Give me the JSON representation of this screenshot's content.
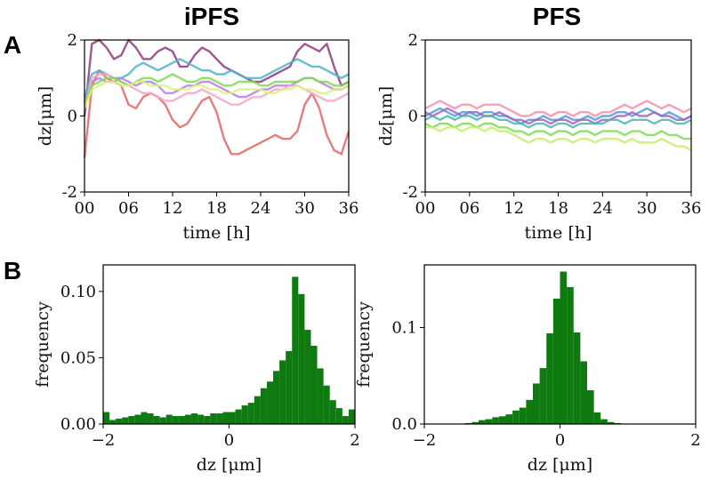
{
  "figure": {
    "panel_a_letter": "A",
    "panel_b_letter": "B",
    "column_titles": [
      "iPFS",
      "PFS"
    ]
  },
  "chart_data": [
    {
      "id": "A-iPFS",
      "type": "line",
      "title": "iPFS",
      "xlabel": "time [h]",
      "ylabel": "dz[μm]",
      "xlim": [
        0,
        36
      ],
      "ylim": [
        -2,
        2
      ],
      "xticks": [
        "00",
        "06",
        "12",
        "18",
        "24",
        "30",
        "36"
      ],
      "yticks": [
        "-2",
        "0",
        "2"
      ],
      "x": [
        0,
        1,
        2,
        3,
        4,
        5,
        6,
        7,
        8,
        9,
        10,
        11,
        12,
        13,
        14,
        15,
        16,
        17,
        18,
        19,
        20,
        21,
        22,
        23,
        24,
        25,
        26,
        27,
        28,
        29,
        30,
        31,
        32,
        33,
        34,
        35,
        36
      ],
      "series": [
        {
          "name": "red",
          "color": "#e06666",
          "values": [
            -1.1,
            0.8,
            1.2,
            1.0,
            0.9,
            0.8,
            0.3,
            0.2,
            0.5,
            0.6,
            0.5,
            0.3,
            -0.1,
            -0.3,
            -0.2,
            0.1,
            0.4,
            0.5,
            0.1,
            -0.6,
            -1.0,
            -1.0,
            -0.9,
            -0.8,
            -0.7,
            -0.6,
            -0.5,
            -0.6,
            -0.6,
            -0.4,
            0.3,
            0.6,
            0.2,
            -0.5,
            -0.9,
            -1.0,
            -0.4
          ]
        },
        {
          "name": "purple",
          "color": "#8e3a7e",
          "values": [
            0.0,
            1.9,
            2.0,
            1.8,
            1.5,
            1.6,
            2.0,
            1.8,
            1.5,
            1.5,
            1.7,
            1.8,
            1.7,
            1.3,
            1.3,
            1.6,
            1.8,
            1.7,
            1.5,
            1.3,
            1.2,
            1.1,
            1.0,
            0.9,
            0.9,
            1.0,
            1.1,
            1.2,
            1.3,
            1.7,
            1.9,
            1.8,
            1.7,
            1.9,
            1.3,
            0.8,
            0.9
          ]
        },
        {
          "name": "cyan",
          "color": "#4fb3c8",
          "values": [
            0.5,
            1.1,
            1.2,
            1.1,
            1.0,
            1.0,
            1.1,
            1.3,
            1.4,
            1.3,
            1.2,
            1.3,
            1.4,
            1.5,
            1.4,
            1.3,
            1.2,
            1.2,
            1.1,
            1.1,
            1.2,
            1.1,
            1.0,
            1.0,
            1.0,
            1.1,
            1.2,
            1.3,
            1.4,
            1.5,
            1.4,
            1.3,
            1.3,
            1.2,
            1.1,
            1.0,
            1.1
          ]
        },
        {
          "name": "violet",
          "color": "#b87fe0",
          "values": [
            0.4,
            0.9,
            1.0,
            0.9,
            0.9,
            1.0,
            0.9,
            0.8,
            0.9,
            0.9,
            0.8,
            0.6,
            0.6,
            0.7,
            0.8,
            0.8,
            0.9,
            0.9,
            0.8,
            0.7,
            0.6,
            0.5,
            0.5,
            0.6,
            0.7,
            0.7,
            0.8,
            0.8,
            0.8,
            0.9,
            1.0,
            1.0,
            0.9,
            0.8,
            0.7,
            0.7,
            0.8
          ]
        },
        {
          "name": "pink",
          "color": "#f4a6c9",
          "values": [
            0.2,
            1.0,
            1.1,
            1.1,
            1.0,
            0.9,
            0.8,
            0.7,
            0.6,
            0.6,
            0.5,
            0.4,
            0.4,
            0.5,
            0.6,
            0.6,
            0.7,
            0.6,
            0.5,
            0.4,
            0.3,
            0.3,
            0.4,
            0.5,
            0.5,
            0.6,
            0.7,
            0.7,
            0.8,
            0.8,
            0.7,
            0.6,
            0.5,
            0.4,
            0.4,
            0.5,
            0.6
          ]
        },
        {
          "name": "green",
          "color": "#7ed957",
          "values": [
            0.3,
            0.8,
            0.9,
            1.0,
            1.0,
            0.9,
            0.8,
            0.9,
            1.0,
            1.0,
            0.9,
            1.0,
            1.1,
            1.0,
            0.9,
            0.9,
            1.0,
            1.0,
            0.9,
            0.8,
            0.8,
            0.9,
            0.9,
            0.9,
            0.8,
            0.8,
            0.9,
            0.9,
            0.9,
            0.9,
            1.0,
            1.0,
            0.9,
            0.9,
            0.8,
            0.8,
            0.9
          ]
        },
        {
          "name": "lime",
          "color": "#d8f27a",
          "values": [
            0.2,
            0.7,
            0.8,
            0.9,
            0.9,
            0.8,
            0.8,
            0.9,
            0.9,
            0.8,
            0.8,
            0.8,
            0.7,
            0.7,
            0.7,
            0.8,
            0.8,
            0.7,
            0.7,
            0.6,
            0.6,
            0.7,
            0.7,
            0.7,
            0.7,
            0.6,
            0.6,
            0.7,
            0.7,
            0.8,
            0.7,
            0.7,
            0.6,
            0.6,
            0.7,
            0.7,
            0.8
          ]
        }
      ]
    },
    {
      "id": "A-PFS",
      "type": "line",
      "title": "PFS",
      "xlabel": "time [h]",
      "ylabel": "dz[μm]",
      "xlim": [
        0,
        36
      ],
      "ylim": [
        -2,
        2
      ],
      "xticks": [
        "00",
        "06",
        "12",
        "18",
        "24",
        "30",
        "36"
      ],
      "yticks": [
        "-2",
        "0",
        "2"
      ],
      "x": [
        0,
        1,
        2,
        3,
        4,
        5,
        6,
        7,
        8,
        9,
        10,
        11,
        12,
        13,
        14,
        15,
        16,
        17,
        18,
        19,
        20,
        21,
        22,
        23,
        24,
        25,
        26,
        27,
        28,
        29,
        30,
        31,
        32,
        33,
        34,
        35,
        36
      ],
      "series": [
        {
          "name": "pink",
          "color": "#f48fb1",
          "values": [
            0.2,
            0.3,
            0.4,
            0.3,
            0.2,
            0.3,
            0.3,
            0.2,
            0.3,
            0.3,
            0.3,
            0.2,
            0.1,
            0.0,
            0.0,
            0.1,
            0.1,
            0.0,
            0.1,
            0.1,
            0.0,
            0.1,
            0.1,
            0.0,
            0.1,
            0.1,
            0.2,
            0.3,
            0.2,
            0.3,
            0.4,
            0.3,
            0.2,
            0.3,
            0.2,
            0.1,
            0.2
          ]
        },
        {
          "name": "blue",
          "color": "#4f9bd9",
          "values": [
            0.0,
            0.1,
            0.2,
            0.1,
            0.0,
            0.1,
            0.1,
            0.0,
            0.1,
            0.1,
            0.0,
            0.0,
            -0.1,
            -0.2,
            -0.1,
            -0.1,
            0.0,
            -0.1,
            -0.1,
            0.0,
            -0.1,
            -0.1,
            0.0,
            -0.1,
            0.0,
            0.0,
            0.1,
            0.1,
            0.0,
            0.1,
            0.2,
            0.1,
            0.0,
            0.1,
            0.0,
            -0.1,
            0.0
          ]
        },
        {
          "name": "purple",
          "color": "#a064c8",
          "values": [
            0.1,
            0.0,
            0.1,
            0.2,
            0.1,
            0.0,
            0.1,
            0.1,
            0.0,
            0.0,
            0.1,
            0.0,
            -0.1,
            -0.1,
            -0.2,
            -0.1,
            -0.1,
            -0.2,
            -0.1,
            -0.1,
            -0.2,
            -0.1,
            -0.1,
            -0.2,
            -0.1,
            -0.1,
            0.0,
            0.0,
            0.1,
            0.0,
            0.0,
            0.1,
            0.0,
            0.0,
            -0.1,
            -0.1,
            0.0
          ]
        },
        {
          "name": "teal",
          "color": "#4db6ac",
          "values": [
            -0.1,
            0.0,
            -0.1,
            0.0,
            -0.1,
            0.0,
            0.0,
            -0.1,
            0.0,
            0.0,
            -0.1,
            -0.1,
            -0.2,
            -0.2,
            -0.3,
            -0.2,
            -0.2,
            -0.3,
            -0.2,
            -0.2,
            -0.3,
            -0.2,
            -0.2,
            -0.2,
            -0.2,
            -0.1,
            -0.1,
            -0.2,
            -0.1,
            -0.1,
            -0.1,
            -0.2,
            -0.1,
            -0.1,
            -0.2,
            -0.2,
            -0.1
          ]
        },
        {
          "name": "green",
          "color": "#7ed957",
          "values": [
            -0.2,
            -0.3,
            -0.2,
            -0.2,
            -0.3,
            -0.2,
            -0.2,
            -0.3,
            -0.2,
            -0.2,
            -0.3,
            -0.3,
            -0.4,
            -0.4,
            -0.5,
            -0.4,
            -0.4,
            -0.5,
            -0.4,
            -0.4,
            -0.5,
            -0.4,
            -0.4,
            -0.5,
            -0.4,
            -0.4,
            -0.4,
            -0.5,
            -0.4,
            -0.4,
            -0.5,
            -0.5,
            -0.4,
            -0.5,
            -0.5,
            -0.6,
            -0.6
          ]
        },
        {
          "name": "lime",
          "color": "#c5ee6a",
          "values": [
            -0.3,
            -0.3,
            -0.4,
            -0.3,
            -0.3,
            -0.4,
            -0.3,
            -0.3,
            -0.4,
            -0.3,
            -0.4,
            -0.4,
            -0.5,
            -0.6,
            -0.7,
            -0.6,
            -0.6,
            -0.7,
            -0.6,
            -0.6,
            -0.7,
            -0.6,
            -0.6,
            -0.7,
            -0.6,
            -0.6,
            -0.6,
            -0.7,
            -0.6,
            -0.7,
            -0.7,
            -0.7,
            -0.6,
            -0.7,
            -0.8,
            -0.8,
            -0.9
          ]
        }
      ]
    },
    {
      "id": "B-iPFS",
      "type": "bar",
      "subtype": "histogram",
      "color": "#0f7a0f",
      "xlabel": "dz [μm]",
      "ylabel": "frequency",
      "xlim": [
        -2,
        2
      ],
      "ylim": [
        0,
        0.12
      ],
      "xticks": [
        "−2",
        "0",
        "2"
      ],
      "yticks": [
        "0.00",
        "0.05",
        "0.10"
      ],
      "bin_edges": [
        -2.0,
        -1.9,
        -1.8,
        -1.7,
        -1.6,
        -1.5,
        -1.4,
        -1.3,
        -1.2,
        -1.1,
        -1.0,
        -0.9,
        -0.8,
        -0.7,
        -0.6,
        -0.5,
        -0.4,
        -0.3,
        -0.2,
        -0.1,
        0.0,
        0.1,
        0.2,
        0.3,
        0.4,
        0.5,
        0.6,
        0.7,
        0.8,
        0.9,
        1.0,
        1.1,
        1.2,
        1.3,
        1.4,
        1.5,
        1.6,
        1.7,
        1.8,
        1.9,
        2.0
      ],
      "values": [
        0.009,
        0.003,
        0.004,
        0.005,
        0.006,
        0.007,
        0.009,
        0.008,
        0.006,
        0.005,
        0.007,
        0.006,
        0.006,
        0.007,
        0.008,
        0.007,
        0.006,
        0.008,
        0.008,
        0.009,
        0.009,
        0.011,
        0.014,
        0.016,
        0.021,
        0.027,
        0.032,
        0.04,
        0.048,
        0.055,
        0.111,
        0.098,
        0.071,
        0.059,
        0.042,
        0.029,
        0.018,
        0.012,
        0.006,
        0.011
      ]
    },
    {
      "id": "B-PFS",
      "type": "bar",
      "subtype": "histogram",
      "color": "#0f7a0f",
      "xlabel": "dz [μm]",
      "ylabel": "frequency",
      "xlim": [
        -2,
        2
      ],
      "ylim": [
        0,
        0.165
      ],
      "xticks": [
        "−2",
        "0",
        "2"
      ],
      "yticks": [
        "0.0",
        "0.1"
      ],
      "bin_edges": [
        -1.4,
        -1.3,
        -1.2,
        -1.1,
        -1.0,
        -0.9,
        -0.8,
        -0.7,
        -0.6,
        -0.5,
        -0.4,
        -0.3,
        -0.2,
        -0.1,
        0.0,
        0.1,
        0.2,
        0.3,
        0.4,
        0.5,
        0.6,
        0.7,
        0.8,
        0.9
      ],
      "values": [
        0.001,
        0.002,
        0.004,
        0.005,
        0.007,
        0.008,
        0.01,
        0.014,
        0.017,
        0.025,
        0.042,
        0.058,
        0.094,
        0.13,
        0.158,
        0.142,
        0.095,
        0.065,
        0.035,
        0.012,
        0.005,
        0.002,
        0.001
      ]
    }
  ]
}
